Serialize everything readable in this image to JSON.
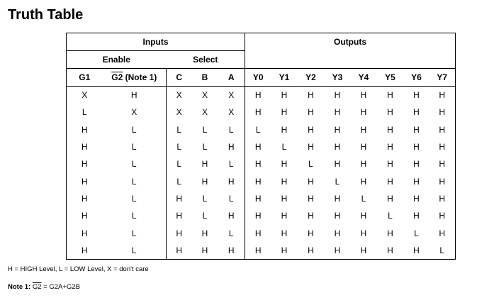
{
  "title": "Truth Table",
  "groups": {
    "inputs": "Inputs",
    "outputs": "Outputs",
    "enable": "Enable",
    "select": "Select"
  },
  "columns": {
    "g1": "G1",
    "g2_bar": "G2",
    "g2_note": " (Note 1)",
    "c": "C",
    "b": "B",
    "a": "A",
    "outputs": [
      "Y0",
      "Y1",
      "Y2",
      "Y3",
      "Y4",
      "Y5",
      "Y6",
      "Y7"
    ]
  },
  "rows": [
    [
      "X",
      "H",
      "X",
      "X",
      "X",
      "H",
      "H",
      "H",
      "H",
      "H",
      "H",
      "H",
      "H"
    ],
    [
      "L",
      "X",
      "X",
      "X",
      "X",
      "H",
      "H",
      "H",
      "H",
      "H",
      "H",
      "H",
      "H"
    ],
    [
      "H",
      "L",
      "L",
      "L",
      "L",
      "L",
      "H",
      "H",
      "H",
      "H",
      "H",
      "H",
      "H"
    ],
    [
      "H",
      "L",
      "L",
      "L",
      "H",
      "H",
      "L",
      "H",
      "H",
      "H",
      "H",
      "H",
      "H"
    ],
    [
      "H",
      "L",
      "L",
      "H",
      "L",
      "H",
      "H",
      "L",
      "H",
      "H",
      "H",
      "H",
      "H"
    ],
    [
      "H",
      "L",
      "L",
      "H",
      "H",
      "H",
      "H",
      "H",
      "L",
      "H",
      "H",
      "H",
      "H"
    ],
    [
      "H",
      "L",
      "H",
      "L",
      "L",
      "H",
      "H",
      "H",
      "H",
      "L",
      "H",
      "H",
      "H"
    ],
    [
      "H",
      "L",
      "H",
      "L",
      "H",
      "H",
      "H",
      "H",
      "H",
      "H",
      "L",
      "H",
      "H"
    ],
    [
      "H",
      "L",
      "H",
      "H",
      "L",
      "H",
      "H",
      "H",
      "H",
      "H",
      "H",
      "L",
      "H"
    ],
    [
      "H",
      "L",
      "H",
      "H",
      "H",
      "H",
      "H",
      "H",
      "H",
      "H",
      "H",
      "H",
      "L"
    ]
  ],
  "legend": "H = HIGH Level, L = LOW Level, X = don't care",
  "note": {
    "label": "Note 1: ",
    "bar": "G2",
    "rest": " = G2A+G2B"
  }
}
